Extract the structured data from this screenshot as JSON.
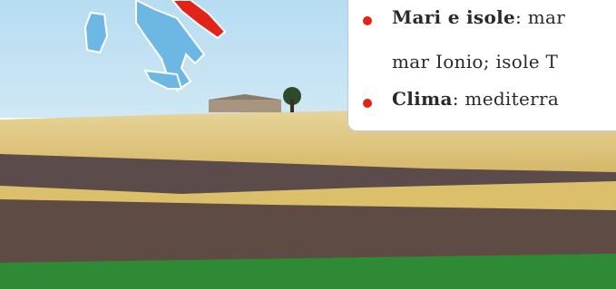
{
  "info_box": {
    "items": [
      {
        "label": "Mari e isole",
        "lines": [
          ": mar",
          "mar Ionio; isole T"
        ]
      },
      {
        "label": "Clima",
        "lines": [
          ": mediterra"
        ]
      }
    ]
  }
}
